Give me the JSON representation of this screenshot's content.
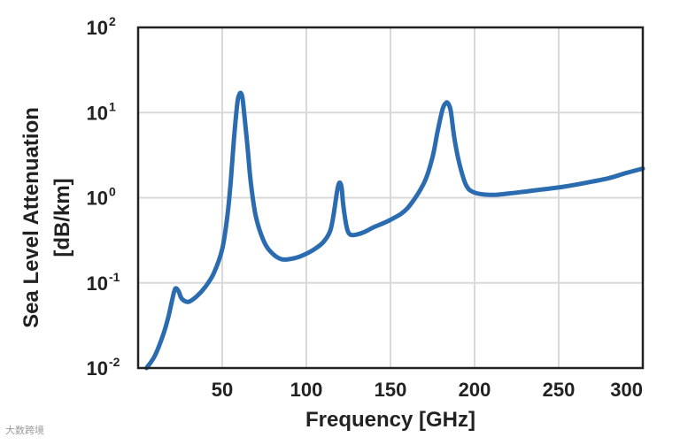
{
  "chart_data": {
    "type": "line",
    "xlabel": "Frequency [GHz]",
    "ylabel_line1": "Sea Level Attenuation",
    "ylabel_line2": "[dB/km]",
    "xlim": [
      0,
      300
    ],
    "ylim": [
      0.01,
      100
    ],
    "yscale": "log",
    "grid": true,
    "x_ticks": [
      50,
      100,
      150,
      200,
      250,
      300
    ],
    "y_ticks": [
      {
        "base": "10",
        "exp": "-2",
        "value": 0.01
      },
      {
        "base": "10",
        "exp": "-1",
        "value": 0.1
      },
      {
        "base": "10",
        "exp": "0",
        "value": 1
      },
      {
        "base": "10",
        "exp": "1",
        "value": 10
      },
      {
        "base": "10",
        "exp": "2",
        "value": 100
      }
    ],
    "series": [
      {
        "color": "#2b6cb0",
        "x": [
          5,
          10,
          15,
          18,
          20,
          22,
          24,
          26,
          30,
          35,
          40,
          45,
          50,
          53,
          55,
          57,
          59,
          60,
          61,
          62,
          63,
          65,
          67,
          70,
          75,
          80,
          85,
          90,
          95,
          100,
          105,
          110,
          114,
          116,
          118,
          119,
          120,
          121,
          122,
          124,
          126,
          130,
          135,
          140,
          150,
          160,
          170,
          175,
          178,
          181,
          183,
          184,
          185,
          186,
          188,
          191,
          195,
          200,
          210,
          220,
          230,
          240,
          250,
          260,
          270,
          280,
          290,
          300
        ],
        "y": [
          0.01,
          0.014,
          0.025,
          0.04,
          0.06,
          0.085,
          0.08,
          0.065,
          0.06,
          0.07,
          0.09,
          0.13,
          0.25,
          0.6,
          1.5,
          5,
          13,
          16,
          17,
          15,
          10,
          4,
          1.5,
          0.6,
          0.3,
          0.22,
          0.19,
          0.19,
          0.2,
          0.22,
          0.25,
          0.3,
          0.4,
          0.6,
          1.1,
          1.4,
          1.5,
          1.3,
          0.8,
          0.45,
          0.37,
          0.37,
          0.4,
          0.45,
          0.55,
          0.75,
          1.5,
          3,
          6,
          11,
          13,
          13,
          12,
          10,
          5,
          2.5,
          1.4,
          1.15,
          1.08,
          1.12,
          1.18,
          1.25,
          1.32,
          1.42,
          1.55,
          1.7,
          1.95,
          2.2
        ]
      }
    ]
  },
  "watermark": "大数跨境"
}
